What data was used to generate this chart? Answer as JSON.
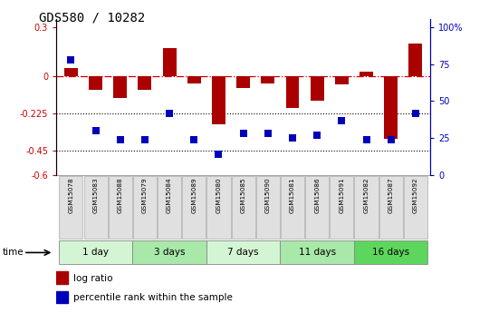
{
  "title": "GDS580 / 10282",
  "samples": [
    "GSM15078",
    "GSM15083",
    "GSM15088",
    "GSM15079",
    "GSM15084",
    "GSM15089",
    "GSM15080",
    "GSM15085",
    "GSM15090",
    "GSM15081",
    "GSM15086",
    "GSM15091",
    "GSM15082",
    "GSM15087",
    "GSM15092"
  ],
  "log_ratio": [
    0.05,
    -0.08,
    -0.13,
    -0.08,
    0.17,
    -0.04,
    -0.29,
    -0.07,
    -0.04,
    -0.19,
    -0.15,
    -0.05,
    0.03,
    -0.38,
    0.2
  ],
  "percentile_pct": [
    78,
    30,
    24,
    24,
    42,
    24,
    14,
    28,
    28,
    25,
    27,
    37,
    24,
    24,
    42
  ],
  "groups": [
    {
      "label": "1 day",
      "start": 0,
      "end": 3,
      "color": "#d4f5d4"
    },
    {
      "label": "3 days",
      "start": 3,
      "end": 6,
      "color": "#a8e8a8"
    },
    {
      "label": "7 days",
      "start": 6,
      "end": 9,
      "color": "#d4f5d4"
    },
    {
      "label": "11 days",
      "start": 9,
      "end": 12,
      "color": "#a8e8a8"
    },
    {
      "label": "16 days",
      "start": 12,
      "end": 15,
      "color": "#5cd65c"
    }
  ],
  "ylim_left": [
    -0.6,
    0.35
  ],
  "yticks_left": [
    0.3,
    0.0,
    -0.225,
    -0.45,
    -0.6
  ],
  "ytick_labels_left": [
    "0.3",
    "0",
    "-0.225",
    "-0.45",
    "-0.6"
  ],
  "yticks_right_pct": [
    100,
    75,
    50,
    25,
    0
  ],
  "ytick_labels_right": [
    "100%",
    "75",
    "50",
    "25",
    "0"
  ],
  "hline_y": 0.0,
  "dotted_lines": [
    -0.225,
    -0.45
  ],
  "bar_color": "#aa0000",
  "point_color": "#0000bb",
  "bar_width": 0.55,
  "point_size": 30
}
